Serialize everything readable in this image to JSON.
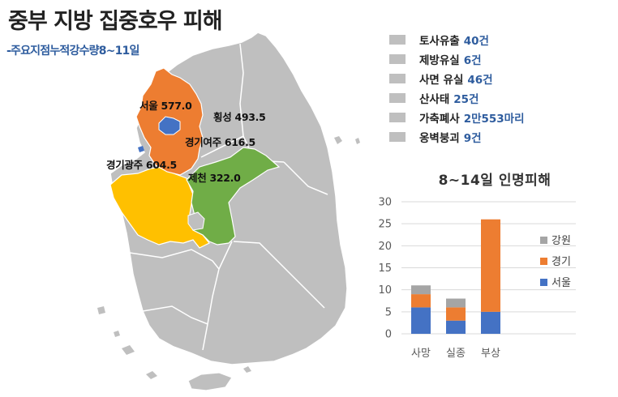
{
  "title": "중부 지방 집중호우 피해",
  "subtitle": "-주요지점누적강수량8~11일",
  "map": {
    "colors": {
      "land": "#bfbfbf",
      "border": "#ffffff",
      "gyeonggi": "#ed7d31",
      "seoul": "#4472c4",
      "chungbuk": "#70ad47",
      "chungnam": "#ffc000"
    },
    "labels": [
      {
        "name": "서울",
        "value": "577.0"
      },
      {
        "name": "횡성",
        "value": "493.5"
      },
      {
        "name": "경기여주",
        "value": "616.5"
      },
      {
        "name": "경기광주",
        "value": "604.5"
      },
      {
        "name": "제천",
        "value": "322.0"
      }
    ]
  },
  "damage_list": [
    {
      "label": "토사유출",
      "value": "40건"
    },
    {
      "label": "제방유실",
      "value": "6건"
    },
    {
      "label": "사면 유실",
      "value": "46건"
    },
    {
      "label": "산사태",
      "value": "25건"
    },
    {
      "label": "가축폐사",
      "value": "2만553마리"
    },
    {
      "label": "옹벽붕괴",
      "value": "9건"
    }
  ],
  "chart_data": {
    "type": "bar",
    "stacked": true,
    "title": "8~14일 인명피해",
    "categories": [
      "사망",
      "실종",
      "부상"
    ],
    "series": [
      {
        "name": "서울",
        "values": [
          6,
          3,
          5
        ],
        "color": "#4472c4"
      },
      {
        "name": "경기",
        "values": [
          3,
          3,
          21
        ],
        "color": "#ed7d31"
      },
      {
        "name": "강원",
        "values": [
          2,
          2,
          0
        ],
        "color": "#a5a5a5"
      }
    ],
    "ylim": [
      0,
      30
    ],
    "yticks": [
      0,
      5,
      10,
      15,
      20,
      25,
      30
    ],
    "grid": true,
    "legend": "right"
  }
}
